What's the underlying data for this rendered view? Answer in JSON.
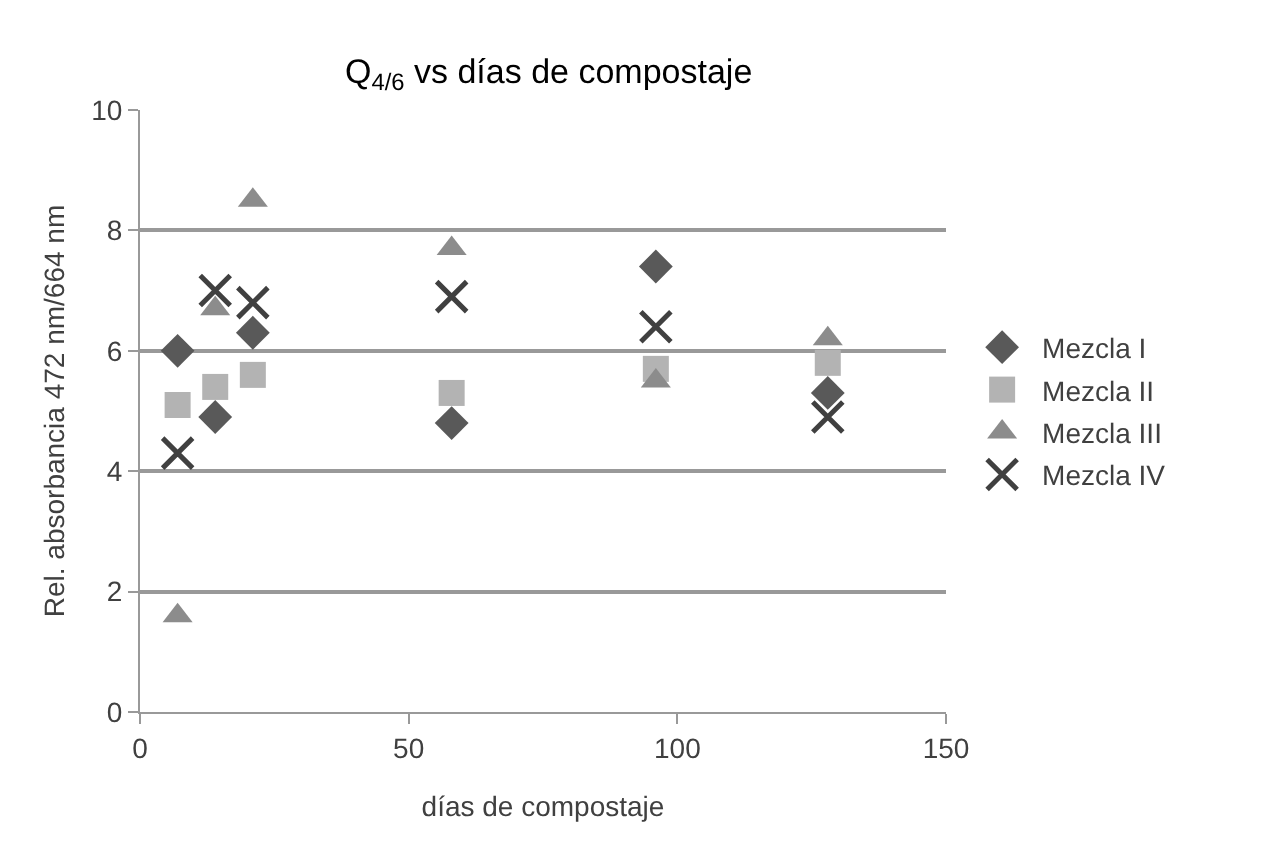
{
  "chart_data": {
    "type": "scatter",
    "title": "Q$_{4/6}$ vs días de compostaje",
    "xlabel": "días de compostaje",
    "ylabel": "Rel. absorbancia 472 nm/664 nm",
    "x": [
      7,
      14,
      21,
      58,
      96,
      128
    ],
    "series": [
      {
        "name": "Mezcla I",
        "color": "#595959",
        "marker": "diamond",
        "values": [
          6.0,
          4.9,
          6.3,
          4.8,
          7.4,
          5.3
        ]
      },
      {
        "name": "Mezcla II",
        "color": "#b3b3b3",
        "marker": "square",
        "values": [
          5.1,
          5.4,
          5.6,
          5.3,
          5.7,
          5.8
        ]
      },
      {
        "name": "Mezcla III",
        "color": "#8c8c8c",
        "marker": "triangle",
        "values": [
          1.6,
          6.7,
          8.5,
          7.7,
          5.5,
          6.2
        ]
      },
      {
        "name": "Mezcla IV",
        "color": "#404040",
        "marker": "cross",
        "values": [
          4.3,
          7.0,
          6.8,
          6.9,
          6.4,
          4.9
        ]
      }
    ],
    "xlim": [
      0,
      150
    ],
    "xticks": [
      0,
      50,
      100,
      150
    ],
    "ylim": [
      0,
      10
    ],
    "yticks": [
      0,
      2,
      4,
      6,
      8,
      10
    ],
    "grid": "y",
    "legend": "right"
  }
}
